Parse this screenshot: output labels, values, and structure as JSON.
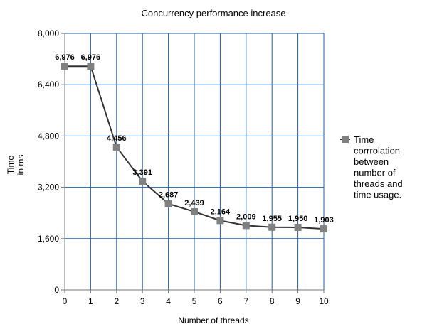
{
  "chart_data": {
    "type": "line",
    "title": "Concurrency performance increase",
    "xlabel": "Number of threads",
    "ylabel": [
      "Time",
      "in ms"
    ],
    "x": [
      0,
      1,
      2,
      3,
      4,
      5,
      6,
      7,
      8,
      9,
      10
    ],
    "series": [
      {
        "name": [
          "Time",
          "corrrolation",
          "between",
          "number of",
          "threads and",
          "time usage."
        ],
        "values": [
          6976,
          6976,
          4456,
          3391,
          2687,
          2439,
          2164,
          2009,
          1955,
          1950,
          1903
        ],
        "labels": [
          "6,976",
          "6,976",
          "4,456",
          "3,391",
          "2,687",
          "2,439",
          "2,164",
          "2,009",
          "1,955",
          "1,950",
          "1,903"
        ]
      }
    ],
    "xlim": [
      0,
      10
    ],
    "ylim": [
      0,
      8000
    ],
    "yticks": [
      0,
      1600,
      3200,
      4800,
      6400,
      8000
    ],
    "ytick_labels": [
      "0",
      "1,600",
      "3,200",
      "4,800",
      "6,400",
      "8,000"
    ],
    "xticks": [
      0,
      1,
      2,
      3,
      4,
      5,
      6,
      7,
      8,
      9,
      10
    ],
    "xtick_labels": [
      "0",
      "1",
      "2",
      "3",
      "4",
      "5",
      "6",
      "7",
      "8",
      "9",
      "10"
    ],
    "grid": true,
    "grid_color": "#1f5fa6",
    "line_color": "#333333",
    "marker_color": "#808080",
    "legend_position": "right"
  }
}
